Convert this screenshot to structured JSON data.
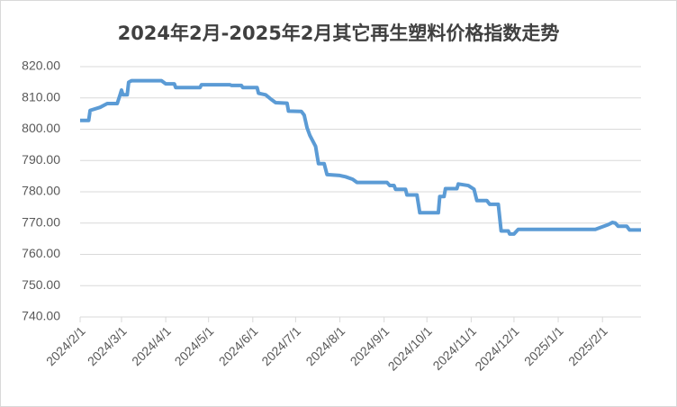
{
  "chart_data": {
    "type": "line",
    "title": "2024年2月-2025年2月其它再生塑料价格指数走势",
    "x": [
      "2024/2/1",
      "2024/2/7",
      "2024/2/8",
      "2024/2/15",
      "2024/2/20",
      "2024/2/27",
      "2024/2/29",
      "2024/3/1",
      "2024/3/2",
      "2024/3/5",
      "2024/3/6",
      "2024/3/8",
      "2024/3/29",
      "2024/4/1",
      "2024/4/7",
      "2024/4/8",
      "2024/4/25",
      "2024/4/26",
      "2024/5/16",
      "2024/5/17",
      "2024/5/24",
      "2024/5/25",
      "2024/6/4",
      "2024/6/5",
      "2024/6/10",
      "2024/6/14",
      "2024/6/17",
      "2024/6/25",
      "2024/6/26",
      "2024/7/5",
      "2024/7/7",
      "2024/7/9",
      "2024/7/11",
      "2024/7/15",
      "2024/7/17",
      "2024/7/21",
      "2024/7/23",
      "2024/8/1",
      "2024/8/5",
      "2024/8/10",
      "2024/8/13",
      "2024/9/3",
      "2024/9/5",
      "2024/9/8",
      "2024/9/9",
      "2024/9/16",
      "2024/9/17",
      "2024/9/24",
      "2024/9/26",
      "2024/10/9",
      "2024/10/10",
      "2024/10/13",
      "2024/10/14",
      "2024/10/22",
      "2024/10/23",
      "2024/10/30",
      "2024/11/3",
      "2024/11/5",
      "2024/11/12",
      "2024/11/14",
      "2024/11/20",
      "2024/11/22",
      "2024/11/27",
      "2024/11/28",
      "2024/12/1",
      "2024/12/4",
      "2025/1/27",
      "2025/2/2",
      "2025/2/5",
      "2025/2/8",
      "2025/2/10",
      "2025/2/12",
      "2025/2/18",
      "2025/2/20",
      "2025/2/28"
    ],
    "series": [
      {
        "color": "#5b9bd5",
        "values": [
          802.8,
          802.8,
          806,
          807,
          808.2,
          808.2,
          811,
          812.5,
          811,
          811,
          815,
          815.5,
          815.5,
          814.5,
          814.5,
          813.3,
          813.3,
          814.2,
          814.2,
          814,
          814,
          813.3,
          813.3,
          811.5,
          811,
          809.5,
          808.5,
          808.3,
          805.8,
          805.7,
          804.5,
          800.5,
          798,
          794.5,
          789,
          789,
          785.5,
          785.2,
          784.8,
          784,
          783,
          783,
          782,
          782,
          780.8,
          780.8,
          779,
          779,
          773.3,
          773.3,
          778.5,
          778.5,
          781,
          781,
          782.5,
          782,
          780.8,
          777.2,
          777.2,
          776,
          776,
          767.5,
          767.5,
          766.5,
          766.5,
          768,
          768,
          769,
          769.5,
          770.2,
          770,
          769,
          769,
          767.8,
          767.8
        ]
      }
    ],
    "xlim": [
      "2024/2/1",
      "2025/2/28"
    ],
    "xticks": [
      "2024/2/1",
      "2024/3/1",
      "2024/4/1",
      "2024/5/1",
      "2024/6/1",
      "2024/7/1",
      "2024/8/1",
      "2024/9/1",
      "2024/10/1",
      "2024/11/1",
      "2024/12/1",
      "2025/1/1",
      "2025/2/1"
    ],
    "ylim": [
      740,
      820
    ],
    "yticks": [
      {
        "value": 740,
        "label": "740.00"
      },
      {
        "value": 750,
        "label": "750.00"
      },
      {
        "value": 760,
        "label": "760.00"
      },
      {
        "value": 770,
        "label": "770.00"
      },
      {
        "value": 780,
        "label": "780.00"
      },
      {
        "value": 790,
        "label": "790.00"
      },
      {
        "value": 800,
        "label": "800.00"
      },
      {
        "value": 810,
        "label": "810.00"
      },
      {
        "value": 820,
        "label": "820.00"
      }
    ],
    "grid": true
  }
}
